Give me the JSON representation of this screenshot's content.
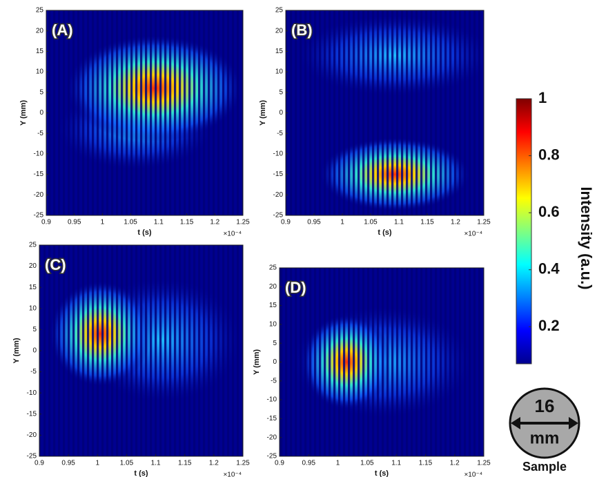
{
  "chart_data": [
    {
      "type": "heatmap",
      "panel_label": "(A)",
      "xlabel": "t (s)",
      "ylabel": "Y (mm)",
      "x_multiplier": "×10⁻⁴",
      "xlim": [
        0.9,
        1.25
      ],
      "xticks": [
        0.9,
        0.95,
        1,
        1.05,
        1.1,
        1.15,
        1.2,
        1.25
      ],
      "ylim": [
        -25,
        25
      ],
      "yticks": [
        -25,
        -20,
        -15,
        -10,
        -5,
        0,
        5,
        10,
        15,
        20,
        25
      ]
    },
    {
      "type": "heatmap",
      "panel_label": "(B)",
      "xlabel": "t (s)",
      "ylabel": "Y (mm)",
      "x_multiplier": "×10⁻⁴",
      "xlim": [
        0.9,
        1.25
      ],
      "xticks": [
        0.9,
        0.95,
        1,
        1.05,
        1.1,
        1.15,
        1.2,
        1.25
      ],
      "ylim": [
        -25,
        25
      ],
      "yticks": [
        -25,
        -20,
        -15,
        -10,
        -5,
        0,
        5,
        10,
        15,
        20,
        25
      ]
    },
    {
      "type": "heatmap",
      "panel_label": "(C)",
      "xlabel": "t (s)",
      "ylabel": "Y (mm)",
      "x_multiplier": "×10⁻⁴",
      "xlim": [
        0.9,
        1.25
      ],
      "xticks": [
        0.9,
        0.95,
        1,
        1.05,
        1.1,
        1.15,
        1.2,
        1.25
      ],
      "ylim": [
        -25,
        25
      ],
      "yticks": [
        -25,
        -20,
        -15,
        -10,
        -5,
        0,
        5,
        10,
        15,
        20,
        25
      ]
    },
    {
      "type": "heatmap",
      "panel_label": "(D)",
      "xlabel": "t (s)",
      "ylabel": "Y (mm)",
      "x_multiplier": "×10⁻⁴",
      "xlim": [
        0.9,
        1.25
      ],
      "xticks": [
        0.9,
        0.95,
        1,
        1.05,
        1.1,
        1.15,
        1.2,
        1.25
      ],
      "ylim": [
        -25,
        25
      ],
      "yticks": [
        -25,
        -20,
        -15,
        -10,
        -5,
        0,
        5,
        10,
        15,
        20,
        25
      ]
    }
  ],
  "colorbar": {
    "label": "Intensity (a.u.)",
    "colormap": "jet",
    "clim": [
      0.07,
      1
    ],
    "ticks": [
      0.2,
      0.4,
      0.6,
      0.8,
      1
    ]
  },
  "sample": {
    "diameter": "16",
    "unit": "mm",
    "label": "Sample"
  }
}
